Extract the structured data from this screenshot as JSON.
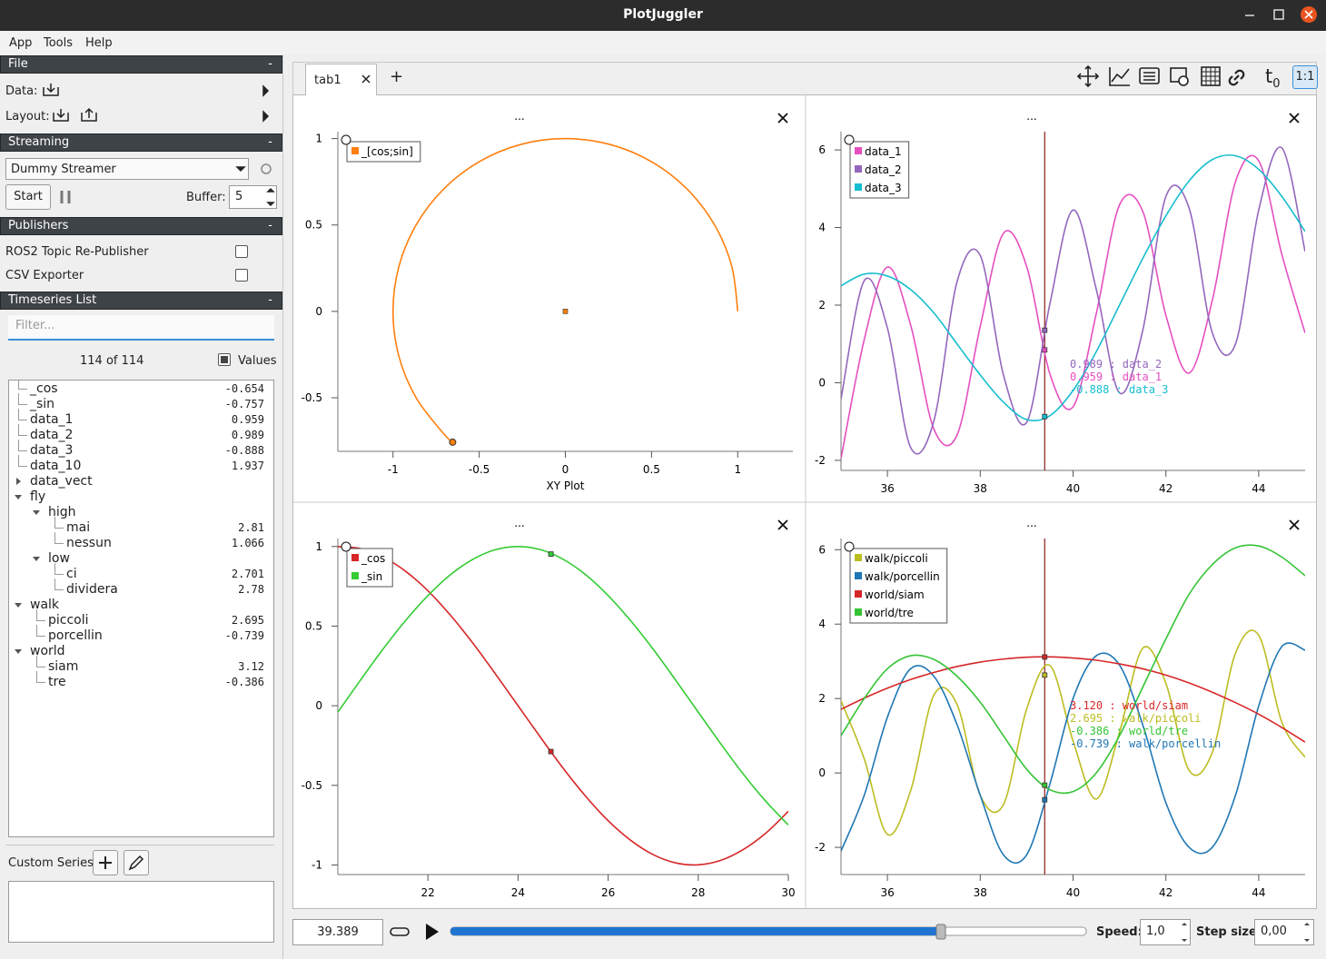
{
  "window": {
    "title": "PlotJuggler"
  },
  "menu": [
    "App",
    "Tools",
    "Help"
  ],
  "sidebar": {
    "file": {
      "header": "File",
      "collapse": "-",
      "data_label": "Data:",
      "layout_label": "Layout:"
    },
    "streaming": {
      "header": "Streaming",
      "collapse": "-",
      "source": "Dummy Streamer",
      "start": "Start",
      "buffer_label": "Buffer:",
      "buffer": 5
    },
    "publishers": {
      "header": "Publishers",
      "collapse": "-",
      "items": [
        "ROS2 Topic Re-Publisher",
        "CSV Exporter"
      ]
    },
    "timeseries": {
      "header": "Timeseries List",
      "collapse": "-",
      "filter_placeholder": "Filter...",
      "count": "114 of 114",
      "values_toggle": "Values",
      "items": [
        {
          "label": "_cos",
          "value": -0.654,
          "depth": 0
        },
        {
          "label": "_sin",
          "value": -0.757,
          "depth": 0
        },
        {
          "label": "data_1",
          "value": 0.959,
          "depth": 0
        },
        {
          "label": "data_2",
          "value": 0.989,
          "depth": 0
        },
        {
          "label": "data_3",
          "value": -0.888,
          "depth": 0
        },
        {
          "label": "data_10",
          "value": 1.937,
          "depth": 0
        },
        {
          "label": "data_vect",
          "depth": 0,
          "expanded": false
        },
        {
          "label": "fly",
          "depth": 0,
          "expanded": true
        },
        {
          "label": "high",
          "depth": 1,
          "expanded": true
        },
        {
          "label": "mai",
          "value": 2.81,
          "depth": 2
        },
        {
          "label": "nessun",
          "value": 1.066,
          "depth": 2
        },
        {
          "label": "low",
          "depth": 1,
          "expanded": true
        },
        {
          "label": "ci",
          "value": 2.701,
          "depth": 2
        },
        {
          "label": "dividera",
          "value": 2.78,
          "depth": 2
        },
        {
          "label": "walk",
          "depth": 0,
          "expanded": true
        },
        {
          "label": "piccoli",
          "value": 2.695,
          "depth": 1
        },
        {
          "label": "porcellin",
          "value": -0.739,
          "depth": 1
        },
        {
          "label": "world",
          "depth": 0,
          "expanded": true
        },
        {
          "label": "siam",
          "value": 3.12,
          "depth": 1
        },
        {
          "label": "tre",
          "value": -0.386,
          "depth": 1
        }
      ]
    },
    "custom_series": {
      "label": "Custom Series:"
    }
  },
  "tabs": {
    "items": [
      "tab1"
    ],
    "add": "+"
  },
  "toolbar": {
    "t0": "t",
    "t0_sub": "0",
    "ratio": "1:1"
  },
  "playback": {
    "time": "39.389",
    "speed_label": "Speed:",
    "speed": "1,0",
    "step_label": "Step size:",
    "step": "0,00"
  },
  "chart_data": [
    {
      "type": "line",
      "title": "...",
      "xlabel": "XY Plot",
      "x": [
        1,
        0.966,
        0.866,
        0.707,
        0.5,
        0.259,
        0,
        -0.259,
        -0.5,
        -0.707,
        -0.866,
        -0.966,
        -1,
        -0.966,
        -0.866,
        -0.707,
        -0.654
      ],
      "series": [
        {
          "name": "_[cos;sin]",
          "color": "#ff7f0e",
          "values": [
            0,
            0.259,
            0.5,
            0.707,
            0.866,
            0.966,
            1,
            0.966,
            0.866,
            0.707,
            0.5,
            0.259,
            0,
            -0.259,
            -0.5,
            -0.707,
            -0.757
          ]
        }
      ],
      "end_marker": true,
      "markers": [
        {
          "x": 0,
          "y": 0
        }
      ],
      "xlim": [
        -1.32,
        1.32
      ],
      "ylim": [
        -0.81,
        1.04
      ],
      "xticks": [
        -1,
        -0.5,
        0,
        0.5,
        1
      ],
      "yticks": [
        -0.5,
        0,
        0.5,
        1
      ],
      "legend": "top-left"
    },
    {
      "type": "line",
      "title": "...",
      "x": [
        35,
        35.5,
        36,
        36.5,
        37,
        37.5,
        38,
        38.5,
        39,
        39.5,
        40,
        40.5,
        41,
        41.5,
        42,
        42.5,
        43,
        43.5,
        44,
        44.5,
        45
      ],
      "series": [
        {
          "name": "data_1",
          "color": "#e64fc0",
          "values": [
            -1.95,
            1.11,
            2.98,
            1.49,
            -1.19,
            -1.35,
            1.45,
            3.85,
            3.0,
            0.23,
            -0.62,
            1.78,
            4.58,
            4.42,
            1.74,
            0.25,
            2.12,
            5.18,
            5.72,
            3.3,
            1.28
          ]
        },
        {
          "name": "data_2",
          "color": "#9467bd",
          "values": [
            -0.42,
            2.63,
            1.41,
            -1.67,
            -0.99,
            2.6,
            3.28,
            0.2,
            -1.02,
            2.03,
            4.45,
            2.41,
            -0.26,
            1.34,
            4.8,
            4.5,
            1.29,
            1.0,
            4.45,
            6.05,
            3.38
          ]
        },
        {
          "name": "data_3",
          "color": "#17becf",
          "values": [
            2.5,
            2.8,
            2.75,
            2.4,
            1.8,
            1.0,
            0.2,
            -0.5,
            -0.95,
            -0.85,
            -0.2,
            0.8,
            2.0,
            3.2,
            4.3,
            5.2,
            5.75,
            5.85,
            5.5,
            4.8,
            3.9
          ]
        }
      ],
      "cursor": 39.389,
      "cursor_line": true,
      "annotations": [
        {
          "text": "0.989 : data_2",
          "color": "#9467bd"
        },
        {
          "text": "0.959 : data_1",
          "color": "#e64fc0"
        },
        {
          "text": "-0.888 : data_3",
          "color": "#17becf"
        }
      ],
      "xlim": [
        35,
        45
      ],
      "ylim": [
        -2.26,
        6.47
      ],
      "xticks": [
        36,
        38,
        40,
        42,
        44
      ],
      "yticks": [
        -2,
        0,
        2,
        4,
        6
      ],
      "legend": "top-left"
    },
    {
      "type": "line",
      "title": "...",
      "x": [
        20,
        20.5,
        21,
        21.5,
        22,
        22.5,
        23,
        23.5,
        24,
        24.5,
        25,
        25.5,
        26,
        26.5,
        27,
        27.5,
        28,
        28.5,
        29,
        29.5,
        30
      ],
      "series": [
        {
          "name": "_cos",
          "color": "#d62728",
          "values": [
            0.999,
            0.987,
            0.935,
            0.845,
            0.722,
            0.568,
            0.392,
            0.199,
            0,
            -0.199,
            -0.392,
            -0.568,
            -0.722,
            -0.845,
            -0.935,
            -0.987,
            -0.999,
            -0.971,
            -0.903,
            -0.8,
            -0.663
          ]
        },
        {
          "name": "_sin",
          "color": "#33cc33",
          "values": [
            -0.04,
            0.16,
            0.355,
            0.534,
            0.692,
            0.823,
            0.92,
            0.98,
            1,
            0.98,
            0.92,
            0.823,
            0.692,
            0.534,
            0.355,
            0.16,
            -0.04,
            -0.239,
            -0.429,
            -0.6,
            -0.749
          ]
        }
      ],
      "cursor": 24.73,
      "cursor_line": false,
      "xlim": [
        20,
        30
      ],
      "ylim": [
        -1.06,
        1.05
      ],
      "xticks": [
        22,
        24,
        26,
        28,
        30
      ],
      "yticks": [
        -1,
        -0.5,
        0,
        0.5,
        1
      ],
      "legend": "top-left"
    },
    {
      "type": "line",
      "title": "...",
      "x": [
        35,
        35.5,
        36,
        36.5,
        37,
        37.5,
        38,
        38.5,
        39,
        39.5,
        40,
        40.5,
        41,
        41.5,
        42,
        42.5,
        43,
        43.5,
        44,
        44.5,
        45
      ],
      "series": [
        {
          "name": "walk/piccoli",
          "color": "#bcbd22",
          "values": [
            1.94,
            0.38,
            -1.65,
            -0.48,
            2.09,
            1.84,
            -0.6,
            -0.85,
            1.72,
            2.89,
            0.86,
            -0.7,
            1.09,
            3.35,
            2.41,
            0.07,
            0.55,
            3.22,
            3.7,
            1.36,
            0.42
          ]
        },
        {
          "name": "walk/porcellin",
          "color": "#1f77b4",
          "values": [
            -2.1,
            -0.6,
            1.5,
            2.8,
            2.6,
            1.3,
            -0.6,
            -2.2,
            -2.2,
            -0.3,
            2.0,
            3.15,
            2.9,
            1.3,
            -0.8,
            -2.0,
            -2.0,
            -0.6,
            1.8,
            3.4,
            3.3
          ]
        },
        {
          "name": "world/siam",
          "color": "#d62728",
          "values": [
            1.71,
            2.01,
            2.28,
            2.51,
            2.7,
            2.86,
            2.98,
            3.06,
            3.11,
            3.12,
            3.09,
            3.03,
            2.93,
            2.8,
            2.63,
            2.42,
            2.17,
            1.89,
            1.58,
            1.22,
            0.83
          ]
        },
        {
          "name": "world/tre",
          "color": "#35c435",
          "values": [
            1.0,
            2.0,
            2.8,
            3.15,
            3.05,
            2.6,
            1.9,
            1.0,
            0.1,
            -0.45,
            -0.5,
            0.0,
            1.0,
            2.3,
            3.6,
            4.8,
            5.6,
            6.05,
            6.1,
            5.8,
            5.3
          ]
        }
      ],
      "cursor": 39.389,
      "cursor_line": true,
      "annotations": [
        {
          "text": "3.120 : world/siam",
          "color": "#d62728"
        },
        {
          "text": "2.695 : walk/piccoli",
          "color": "#bcbd22"
        },
        {
          "text": "-0.386 : world/tre",
          "color": "#35c435"
        },
        {
          "text": "-0.739 : walk/porcellin",
          "color": "#1f77b4"
        }
      ],
      "xlim": [
        35,
        45
      ],
      "ylim": [
        -2.73,
        6.3
      ],
      "xticks": [
        36,
        38,
        40,
        42,
        44
      ],
      "yticks": [
        -2,
        0,
        2,
        4,
        6
      ],
      "legend": "top-left"
    }
  ]
}
